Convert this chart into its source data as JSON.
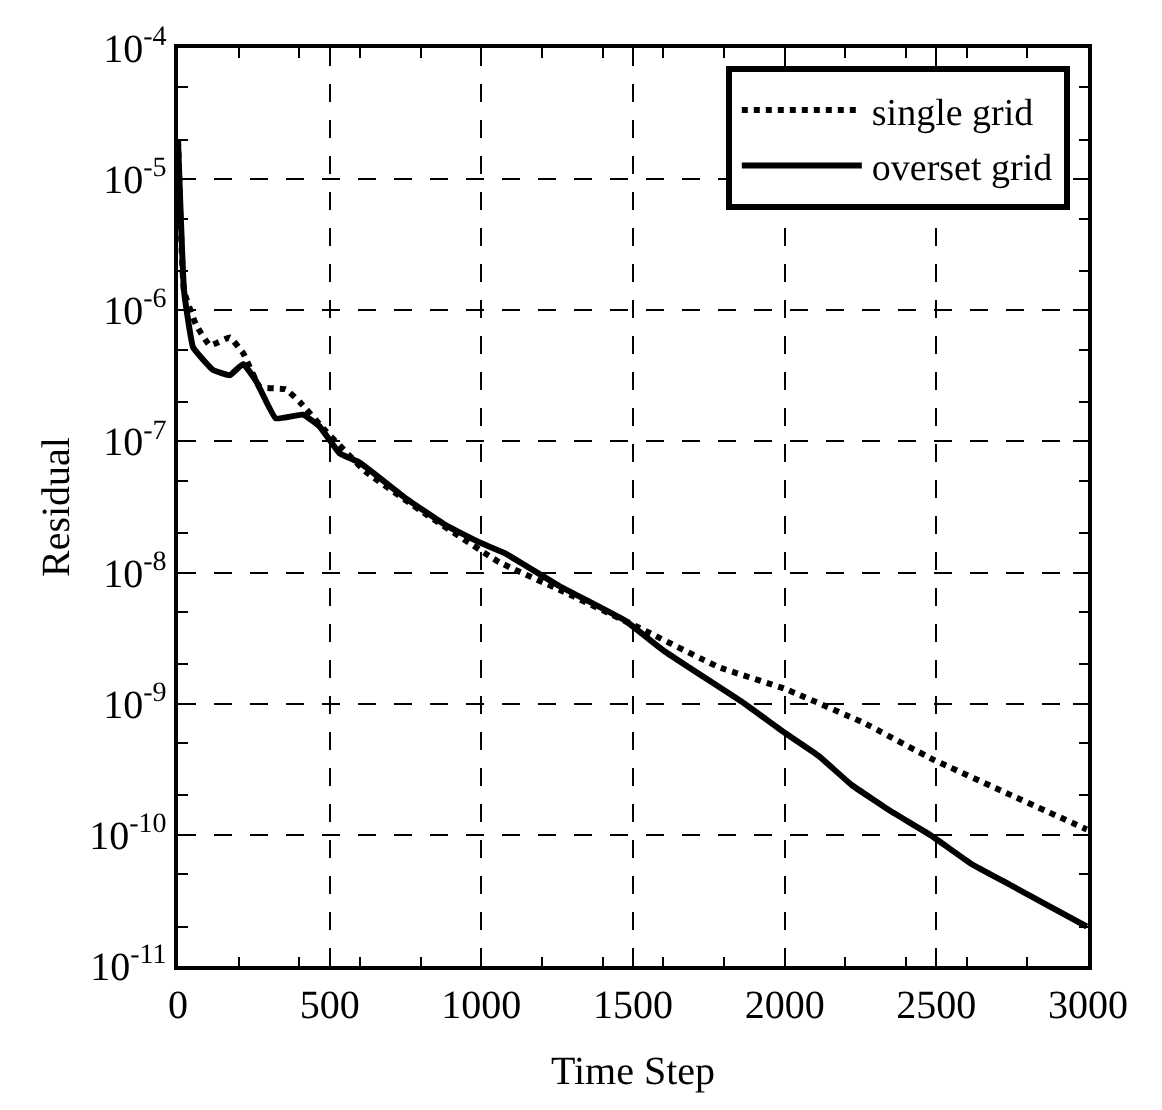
{
  "chart_data": {
    "type": "line",
    "xlabel": "Time Step",
    "ylabel": "Residual",
    "log": "y",
    "grid": true,
    "legend": "top right",
    "xlim": [
      0,
      3000
    ],
    "xticks": [
      0,
      500,
      1000,
      1500,
      2000,
      2500,
      3000
    ],
    "ylim": [
      1e-11,
      0.0001
    ],
    "yticks": [
      {
        "value": 1e-11,
        "label": "10$^{-11}$"
      },
      {
        "value": 1e-10,
        "label": "10$^{-10}$"
      },
      {
        "value": 1e-09,
        "label": "10$^{-9}$"
      },
      {
        "value": 1e-08,
        "label": "10$^{-8}$"
      },
      {
        "value": 1e-07,
        "label": "10$^{-7}$"
      },
      {
        "value": 1e-06,
        "label": "10$^{-6}$"
      },
      {
        "value": 1e-05,
        "label": "10$^{-5}$"
      },
      {
        "value": 0.0001,
        "label": "10$^{-4}$"
      }
    ],
    "series": [
      {
        "name": "single grid",
        "color": "#000000",
        "line_style": "dotted",
        "x": [
          0,
          20,
          59,
          105,
          171,
          215,
          270,
          355,
          401,
          487,
          618,
          816,
          1059,
          1257,
          1520,
          1783,
          2000,
          2263,
          2485,
          2748,
          2996
        ],
        "values": [
          2e-05,
          1.4e-06,
          7.8e-07,
          5.4e-07,
          6.2e-07,
          4.7e-07,
          2.6e-07,
          2.5e-07,
          2e-07,
          1.2e-07,
          5.9e-08,
          2.8e-08,
          1.2e-08,
          7.4e-09,
          3.8e-09,
          1.9e-09,
          1.3e-09,
          7.1e-10,
          3.8e-10,
          2e-10,
          1.1e-10
        ]
      },
      {
        "name": "overset grid",
        "color": "#000000",
        "line_style": "solid",
        "x": [
          0,
          20,
          50,
          116,
          171,
          215,
          257,
          322,
          412,
          467,
          533,
          599,
          750,
          882,
          993,
          1079,
          1257,
          1474,
          1605,
          1868,
          2000,
          2112,
          2221,
          2353,
          2485,
          2616,
          2748,
          2996
        ],
        "values": [
          2e-05,
          1.4e-06,
          5.2e-07,
          3.5e-07,
          3.2e-07,
          3.9e-07,
          2.9e-07,
          1.5e-07,
          1.6e-07,
          1.3e-07,
          8.1e-08,
          6.9e-08,
          3.7e-08,
          2.3e-08,
          1.7e-08,
          1.4e-08,
          7.9e-09,
          4.3e-09,
          2.5e-09,
          1e-09,
          6e-10,
          4e-10,
          2.4e-10,
          1.5e-10,
          9.8e-11,
          6e-11,
          4.1e-11,
          2e-11
        ]
      }
    ]
  }
}
